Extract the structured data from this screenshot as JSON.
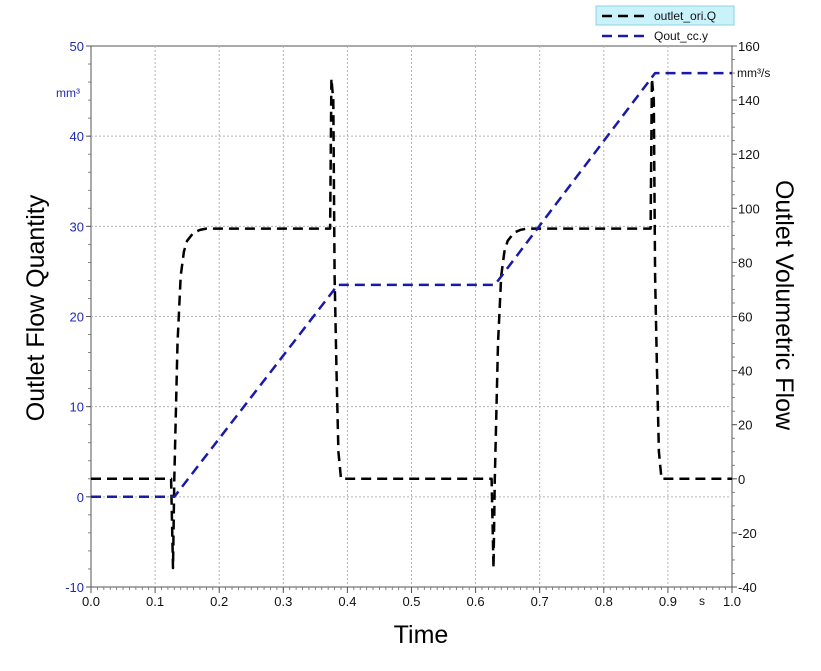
{
  "chart_data": {
    "type": "line",
    "xlabel": "Time",
    "ylabel": "Outlet Flow Quantity",
    "y2label": "Outlet Volumetric Flow",
    "x_unit": "s",
    "y_unit": "mm³",
    "y2_unit": "mm³/s",
    "xlim": [
      0,
      1.0
    ],
    "ylim": [
      -10,
      50
    ],
    "y2lim": [
      -40,
      160
    ],
    "x_ticks": [
      "0.0",
      "0.1",
      "0.2",
      "0.3",
      "0.4",
      "0.5",
      "0.6",
      "0.7",
      "0.8",
      "0.9",
      "1.0"
    ],
    "y_ticks": [
      "-10",
      "0",
      "10",
      "20",
      "30",
      "40",
      "50"
    ],
    "y2_ticks": [
      "-40",
      "-20",
      "0",
      "20",
      "40",
      "60",
      "80",
      "100",
      "120",
      "140",
      "160"
    ],
    "grid": true,
    "legend_position": "top-right",
    "series": [
      {
        "name": "outlet_ori.Q",
        "axis": "right",
        "color": "#000000",
        "dash": "dashed",
        "x": [
          0.0,
          0.12,
          0.125,
          0.128,
          0.13,
          0.135,
          0.14,
          0.145,
          0.15,
          0.16,
          0.17,
          0.18,
          0.2,
          0.3,
          0.37,
          0.373,
          0.375,
          0.378,
          0.38,
          0.383,
          0.386,
          0.39,
          0.4,
          0.5,
          0.62,
          0.625,
          0.628,
          0.63,
          0.635,
          0.64,
          0.645,
          0.65,
          0.66,
          0.67,
          0.68,
          0.7,
          0.8,
          0.87,
          0.873,
          0.875,
          0.878,
          0.88,
          0.883,
          0.886,
          0.89,
          0.9,
          1.0
        ],
        "y": [
          0,
          0,
          0,
          -33,
          0,
          50,
          75,
          84,
          88,
          91,
          92,
          92.5,
          92.5,
          92.5,
          92.5,
          92.5,
          148,
          140,
          75,
          40,
          10,
          0,
          0,
          0,
          0,
          0,
          -33,
          0,
          50,
          75,
          84,
          88,
          91,
          92,
          92.5,
          92.5,
          92.5,
          92.5,
          92.5,
          148,
          140,
          75,
          40,
          10,
          0,
          0,
          0
        ]
      },
      {
        "name": "Qout_cc.y",
        "axis": "left",
        "color": "#1a1aa8",
        "dash": "dashed",
        "x": [
          0.0,
          0.13,
          0.385,
          0.63,
          0.88,
          1.0
        ],
        "y": [
          0,
          0,
          23.5,
          23.5,
          47,
          47
        ]
      }
    ]
  }
}
